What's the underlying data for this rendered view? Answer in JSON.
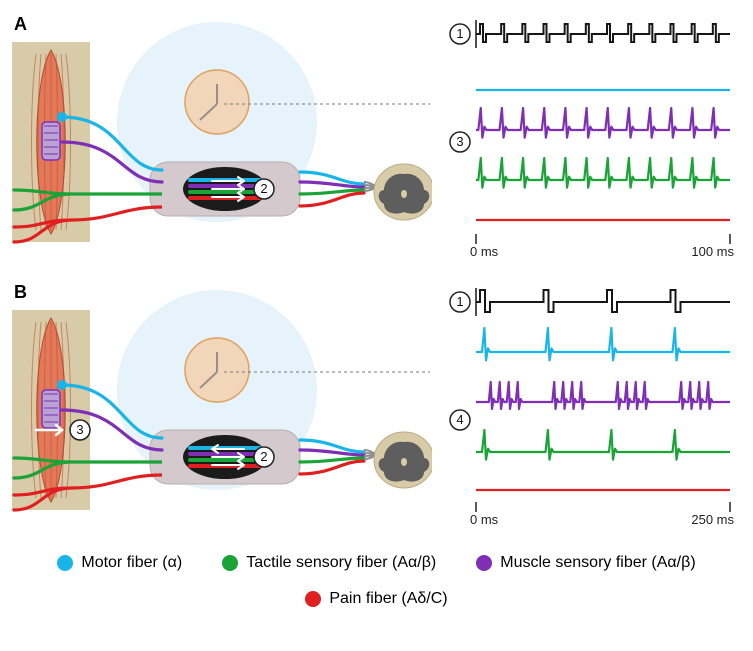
{
  "panels": {
    "A": {
      "label": "A",
      "stim_trace_marker": "1",
      "cuff_marker": "2",
      "response_marker": "3",
      "time_start": "0 ms",
      "time_end": "100 ms",
      "stim_frequency_hz": 12,
      "response_spikes": 12,
      "arrows_in_cuff": [
        "right",
        "right",
        "right"
      ]
    },
    "B": {
      "label": "B",
      "stim_trace_marker": "1",
      "cuff_marker": "2",
      "muscle_marker": "3",
      "response_marker": "4",
      "time_start": "0 ms",
      "time_end": "250 ms",
      "stim_pulses": 4,
      "burst_size": 4,
      "arrows_in_cuff": [
        "left",
        "right",
        "right"
      ]
    }
  },
  "colors": {
    "motor": "#1ab5e8",
    "muscle_sensory": "#7f2fb5",
    "tactile": "#1aa336",
    "pain": "#e02020",
    "stim_trace": "#161616",
    "muscle_body": "#e4795a",
    "muscle_stripe": "#b84a2d",
    "muscle_bg": "#d8cba8",
    "transducer_bg": "#d1e9f6",
    "transducer_stroke": "#6fa5c0",
    "transducer_core": "#f5c99e",
    "cuff_outer": "#d4c9cc",
    "cuff_inner": "#1b1b1b",
    "spinal_bg": "#d8cba8",
    "spinal_shape": "#5e5e5e",
    "dashed_lead": "#7a7a7a",
    "arrow": "#ffffff",
    "marker_ring": "#222222",
    "marker_fill": "#ffffff"
  },
  "legend": [
    {
      "key": "motor",
      "label": "Motor fiber (α)"
    },
    {
      "key": "tactile",
      "label": "Tactile sensory fiber (Aα/β)"
    },
    {
      "key": "muscle_sensory",
      "label": "Muscle sensory fiber (Aα/β)"
    },
    {
      "key": "pain",
      "label": "Pain fiber (Aδ/C)"
    }
  ],
  "layout": {
    "diagram_w": 420,
    "diagram_h": 250,
    "traces_w": 290,
    "traces_h": 250
  },
  "line_widths": {
    "fiber": 3.2,
    "trace": 2.2,
    "stim": 2
  }
}
